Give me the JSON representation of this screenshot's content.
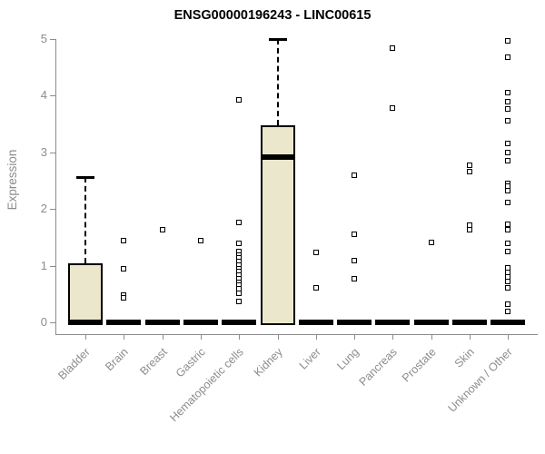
{
  "chart_data": {
    "type": "boxplot",
    "title": "ENSG00000196243 - LINC00615",
    "ylabel": "Expression",
    "ylim": [
      0,
      5
    ],
    "yticks": [
      0,
      1,
      2,
      3,
      4,
      5
    ],
    "grid": false,
    "box_fill_color": "#EBE7CC",
    "axis_color": "#8C8C8C",
    "box_stroke_color": "#000000",
    "categories": [
      "Bladder",
      "Brain",
      "Breast",
      "Gastric",
      "Hematopoietic cells",
      "Kidney",
      "Liver",
      "Lung",
      "Pancreas",
      "Prostate",
      "Skin",
      "Unknown / Other"
    ],
    "groups": [
      {
        "name": "Bladder",
        "q1": 0,
        "median": 0,
        "q3": 1.04,
        "whisker_low": 0,
        "whisker_high": 2.56,
        "points": []
      },
      {
        "name": "Brain",
        "q1": 0,
        "median": 0,
        "q3": 0,
        "whisker_low": 0,
        "whisker_high": 0,
        "points": [
          1.44,
          0.95,
          0.48,
          0.43
        ]
      },
      {
        "name": "Breast",
        "q1": 0,
        "median": 0,
        "q3": 0,
        "whisker_low": 0,
        "whisker_high": 0,
        "points": [
          1.63
        ]
      },
      {
        "name": "Gastric",
        "q1": 0,
        "median": 0,
        "q3": 0,
        "whisker_low": 0,
        "whisker_high": 0,
        "points": [
          1.44
        ]
      },
      {
        "name": "Hematopoietic cells",
        "q1": 0,
        "median": 0,
        "q3": 0,
        "whisker_low": 0,
        "whisker_high": 0,
        "points": [
          3.93,
          1.76,
          1.39,
          1.25,
          1.19,
          1.13,
          1.07,
          1.01,
          0.95,
          0.89,
          0.83,
          0.77,
          0.71,
          0.65,
          0.59,
          0.51,
          0.37
        ]
      },
      {
        "name": "Kidney",
        "q1": 0,
        "median": 2.92,
        "q3": 3.48,
        "whisker_low": 0,
        "whisker_high": 5.0,
        "points": []
      },
      {
        "name": "Liver",
        "q1": 0,
        "median": 0,
        "q3": 0,
        "whisker_low": 0,
        "whisker_high": 0,
        "points": [
          1.23,
          0.61
        ]
      },
      {
        "name": "Lung",
        "q1": 0,
        "median": 0,
        "q3": 0,
        "whisker_low": 0,
        "whisker_high": 0,
        "points": [
          2.6,
          1.55,
          1.09,
          0.77
        ]
      },
      {
        "name": "Pancreas",
        "q1": 0,
        "median": 0,
        "q3": 0,
        "whisker_low": 0,
        "whisker_high": 0,
        "points": [
          4.84,
          3.78
        ]
      },
      {
        "name": "Prostate",
        "q1": 0,
        "median": 0,
        "q3": 0,
        "whisker_low": 0,
        "whisker_high": 0,
        "points": [
          1.41
        ]
      },
      {
        "name": "Skin",
        "q1": 0,
        "median": 0,
        "q3": 0,
        "whisker_low": 0,
        "whisker_high": 0,
        "points": [
          2.77,
          2.66,
          1.71,
          1.64
        ]
      },
      {
        "name": "Unknown / Other",
        "q1": 0,
        "median": 0,
        "q3": 0,
        "whisker_low": 0,
        "whisker_high": 0,
        "points": [
          4.97,
          4.68,
          4.05,
          3.89,
          3.77,
          3.56,
          3.16,
          3.0,
          2.85,
          2.45,
          2.4,
          2.33,
          2.12,
          1.73,
          1.63,
          1.39,
          1.25,
          0.96,
          0.88,
          0.8,
          0.72,
          0.61,
          0.32,
          0.19
        ]
      }
    ]
  }
}
